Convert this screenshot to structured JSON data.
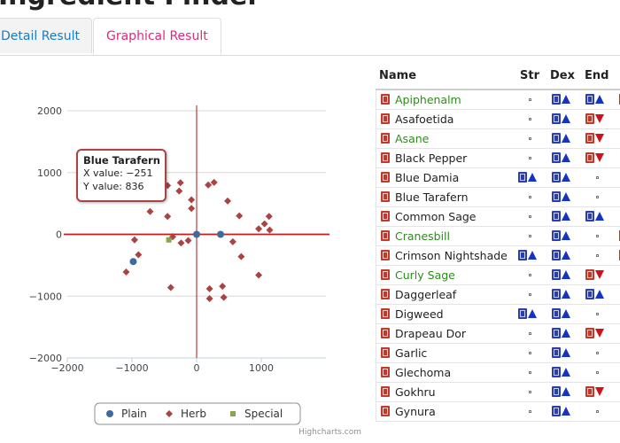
{
  "page": {
    "title": "Ingredient Finder"
  },
  "tabs": [
    {
      "label": "Detail Result",
      "active": false
    },
    {
      "label": "Graphical Result",
      "active": true
    }
  ],
  "chart_data": {
    "type": "scatter",
    "xlim": [
      -2000,
      2000
    ],
    "ylim": [
      -2000,
      2000
    ],
    "x_ticks": [
      "−2000",
      "−1000",
      "0",
      "1000"
    ],
    "y_ticks": [
      "2000",
      "1000",
      "0",
      "−1000",
      "−2000"
    ],
    "grid": true,
    "legend_position": "bottom-center",
    "credit": "Highcharts.com",
    "series": [
      {
        "name": "Plain",
        "color": "#3f6a9e",
        "marker": "circle",
        "points": [
          [
            -980,
            -440
          ],
          [
            0,
            0
          ],
          [
            370,
            0
          ]
        ]
      },
      {
        "name": "Herb",
        "color": "#a94442",
        "marker": "diamond",
        "points": [
          [
            -251,
            836
          ],
          [
            -450,
            790
          ],
          [
            -270,
            700
          ],
          [
            -80,
            560
          ],
          [
            180,
            800
          ],
          [
            270,
            840
          ],
          [
            -720,
            370
          ],
          [
            -450,
            290
          ],
          [
            -80,
            420
          ],
          [
            480,
            540
          ],
          [
            660,
            300
          ],
          [
            1120,
            290
          ],
          [
            1050,
            170
          ],
          [
            1130,
            70
          ],
          [
            960,
            90
          ],
          [
            -960,
            -90
          ],
          [
            -370,
            -40
          ],
          [
            -240,
            -140
          ],
          [
            -130,
            -100
          ],
          [
            560,
            -120
          ],
          [
            690,
            -360
          ],
          [
            -900,
            -330
          ],
          [
            -1090,
            -610
          ],
          [
            960,
            -660
          ],
          [
            -400,
            -860
          ],
          [
            200,
            -880
          ],
          [
            400,
            -840
          ],
          [
            200,
            -1040
          ],
          [
            420,
            -1020
          ]
        ]
      },
      {
        "name": "Special",
        "color": "#89a54e",
        "marker": "square",
        "points": [
          [
            -430,
            -90
          ]
        ]
      }
    ],
    "tooltip": {
      "title": "Blue Tarafern",
      "x_label": "X value: −251",
      "y_label": "Y value: 836"
    }
  },
  "table": {
    "headers": [
      "Name",
      "Str",
      "Dex",
      "End"
    ],
    "rows": [
      {
        "name": "Apiphenalm",
        "color": "#2e8b1e",
        "str": "dot",
        "dex": "up",
        "end": "blue-up"
      },
      {
        "name": "Asafoetida",
        "color": "#222222",
        "str": "dot",
        "dex": "up",
        "end": "red-down"
      },
      {
        "name": "Asane",
        "color": "#2e8b1e",
        "str": "dot",
        "dex": "up",
        "end": "red-down"
      },
      {
        "name": "Black Pepper",
        "color": "#222222",
        "str": "dot",
        "dex": "up",
        "end": "red-down"
      },
      {
        "name": "Blue Damia",
        "color": "#222222",
        "str": "blue-up",
        "dex": "up",
        "end": "dot"
      },
      {
        "name": "Blue Tarafern",
        "color": "#222222",
        "str": "dot",
        "dex": "up",
        "end": "dot"
      },
      {
        "name": "Common Sage",
        "color": "#222222",
        "str": "dot",
        "dex": "up",
        "end": "blue-up"
      },
      {
        "name": "Cranesbill",
        "color": "#2e8b1e",
        "str": "dot",
        "dex": "up",
        "end": "dot"
      },
      {
        "name": "Crimson Nightshade",
        "color": "#222222",
        "str": "blue-up",
        "dex": "up",
        "end": "dot"
      },
      {
        "name": "Curly Sage",
        "color": "#2e8b1e",
        "str": "dot",
        "dex": "up",
        "end": "red-down"
      },
      {
        "name": "Daggerleaf",
        "color": "#222222",
        "str": "dot",
        "dex": "up",
        "end": "blue-up"
      },
      {
        "name": "Digweed",
        "color": "#222222",
        "str": "blue-up",
        "dex": "up",
        "end": "dot"
      },
      {
        "name": "Drapeau Dor",
        "color": "#222222",
        "str": "dot",
        "dex": "up",
        "end": "red-down"
      },
      {
        "name": "Garlic",
        "color": "#222222",
        "str": "dot",
        "dex": "up",
        "end": "dot"
      },
      {
        "name": "Glechoma",
        "color": "#222222",
        "str": "dot",
        "dex": "up",
        "end": "dot"
      },
      {
        "name": "Gokhru",
        "color": "#222222",
        "str": "dot",
        "dex": "up",
        "end": "red-down"
      },
      {
        "name": "Gynura",
        "color": "#222222",
        "str": "dot",
        "dex": "up",
        "end": "dot"
      }
    ]
  }
}
